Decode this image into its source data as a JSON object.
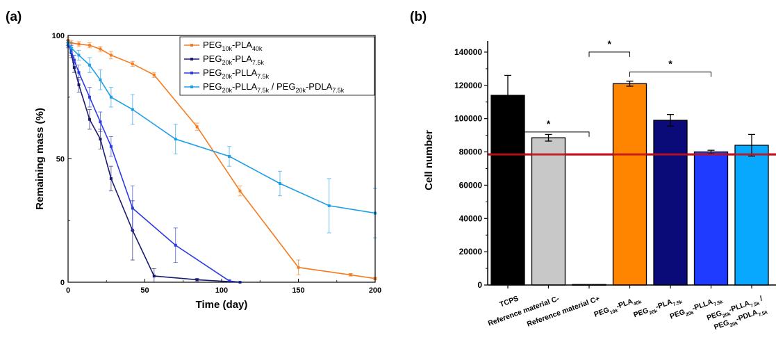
{
  "chart_data": [
    {
      "type": "line",
      "panel_label": "(a)",
      "xlabel": "Time (day)",
      "ylabel": "Remaining mass (%)",
      "xlim": [
        0,
        200
      ],
      "ylim": [
        0,
        100
      ],
      "xticks": [
        0,
        50,
        100,
        150,
        200
      ],
      "yticks": [
        0,
        50,
        100
      ],
      "legend_placement": "top-right",
      "series": [
        {
          "name_parts": [
            [
              "PEG",
              ""
            ],
            [
              "10k",
              "sub"
            ],
            [
              "-PLA",
              ""
            ],
            [
              "40k",
              "sub"
            ]
          ],
          "color": "#f47b20",
          "x": [
            0,
            2,
            7,
            14,
            21,
            28,
            42,
            56,
            84,
            112,
            150,
            184,
            200
          ],
          "y": [
            98,
            97,
            96.5,
            96,
            94.5,
            92,
            88.5,
            84,
            63,
            37,
            6,
            3,
            1.5
          ],
          "err": [
            1,
            1,
            1,
            1,
            1,
            1.5,
            1,
            1,
            1.5,
            2,
            3,
            0.5,
            0.5
          ]
        },
        {
          "name_parts": [
            [
              "PEG",
              ""
            ],
            [
              "20k",
              "sub"
            ],
            [
              "-PLA",
              ""
            ],
            [
              "7.5k",
              "sub"
            ]
          ],
          "color": "#1a1a6e",
          "x": [
            0,
            2,
            4,
            7,
            14,
            21,
            28,
            42,
            56,
            84,
            112
          ],
          "y": [
            97,
            93,
            87,
            80,
            66,
            58,
            42,
            21,
            2.5,
            1,
            0
          ],
          "err": [
            1,
            2,
            2,
            3,
            4,
            4,
            5,
            12,
            3,
            0.5,
            0
          ]
        },
        {
          "name_parts": [
            [
              "PEG",
              ""
            ],
            [
              "20k",
              "sub"
            ],
            [
              "-PLLA",
              ""
            ],
            [
              "7.5k",
              "sub"
            ]
          ],
          "color": "#2b3be0",
          "x": [
            0,
            2,
            4,
            7,
            14,
            21,
            28,
            42,
            70,
            105,
            112
          ],
          "y": [
            96,
            94,
            90,
            85,
            75,
            65,
            55,
            30,
            15,
            0.5,
            0
          ],
          "err": [
            1,
            2,
            2,
            3,
            4,
            4,
            4,
            9,
            7,
            0.5,
            0
          ]
        },
        {
          "name_parts": [
            [
              "PEG",
              ""
            ],
            [
              "20k",
              "sub"
            ],
            [
              "-PLLA",
              ""
            ],
            [
              "7.5k",
              "sub"
            ],
            [
              " / PEG",
              ""
            ],
            [
              "20k",
              "sub"
            ],
            [
              "-PDLA",
              ""
            ],
            [
              "7.5k",
              "sub"
            ]
          ],
          "color": "#1e9ee8",
          "x": [
            0,
            2,
            7,
            14,
            21,
            28,
            42,
            70,
            105,
            138,
            170,
            200
          ],
          "y": [
            97,
            95,
            92,
            88,
            82,
            75,
            70,
            58,
            51,
            40,
            31,
            28
          ],
          "err": [
            1,
            2,
            2,
            3,
            4,
            4,
            6,
            6,
            4,
            5,
            11,
            10
          ]
        }
      ]
    },
    {
      "type": "bar",
      "panel_label": "(b)",
      "ylabel": "Cell number",
      "ylim": [
        0,
        150000
      ],
      "yticks": [
        0,
        20000,
        40000,
        60000,
        80000,
        100000,
        120000,
        140000
      ],
      "reference_line": 78500,
      "reference_line_color": "#c0121c",
      "categories": [
        [
          [
            [
              "TCPS",
              ""
            ]
          ]
        ],
        [
          [
            [
              "Reference material C-",
              ""
            ]
          ]
        ],
        [
          [
            [
              "Reference material C+",
              ""
            ]
          ]
        ],
        [
          [
            [
              "PEG",
              ""
            ],
            [
              "10k",
              "sub"
            ],
            [
              "-PLA",
              ""
            ],
            [
              "40k",
              "sub"
            ]
          ]
        ],
        [
          [
            [
              "PEG",
              ""
            ],
            [
              "20k",
              "sub"
            ],
            [
              "-PLA",
              ""
            ],
            [
              "7.5k",
              "sub"
            ]
          ]
        ],
        [
          [
            [
              "PEG",
              ""
            ],
            [
              "20k",
              "sub"
            ],
            [
              "-PLLA",
              ""
            ],
            [
              "7.5k",
              "sub"
            ]
          ]
        ],
        [
          [
            [
              "PEG",
              ""
            ],
            [
              "20k",
              "sub"
            ],
            [
              "-PLLA",
              ""
            ],
            [
              "7.5k",
              "sub"
            ],
            [
              " /",
              ""
            ]
          ],
          [
            [
              "PEG",
              ""
            ],
            [
              "20k",
              "sub"
            ],
            [
              "-PDLA",
              ""
            ],
            [
              "7.5k",
              "sub"
            ]
          ]
        ]
      ],
      "values": [
        114000,
        88500,
        300,
        121000,
        99000,
        80000,
        84000
      ],
      "errors": [
        12000,
        2000,
        0,
        1500,
        3500,
        1000,
        6500
      ],
      "colors": [
        "#000000",
        "#c8c8c8",
        "#ffffff",
        "#ff8400",
        "#0a0a78",
        "#1f3bff",
        "#08a8ff"
      ],
      "significance": [
        {
          "from": 0,
          "to": 2,
          "label": "*",
          "level": 92000
        },
        {
          "from": 2,
          "to": 3,
          "label": "*",
          "level": 140000
        },
        {
          "from": 3,
          "to": 5,
          "label": "*",
          "level": 128000
        }
      ]
    }
  ]
}
